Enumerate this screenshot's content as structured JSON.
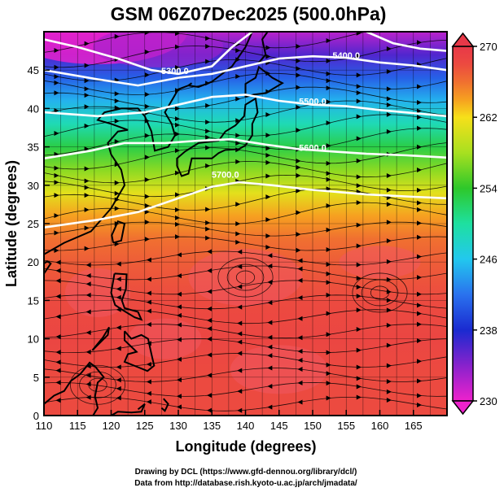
{
  "chart_data": {
    "type": "heatmap",
    "title": "GSM 06Z07Dec2025 (500.0hPa)",
    "xlabel": "Longitude (degrees)",
    "ylabel": "Latitude  (degrees)",
    "xlim": [
      110,
      170
    ],
    "ylim": [
      0,
      50
    ],
    "x_ticks": [
      110,
      115,
      120,
      125,
      130,
      135,
      140,
      145,
      150,
      155,
      160,
      165
    ],
    "y_ticks": [
      0,
      5,
      10,
      15,
      20,
      25,
      30,
      35,
      40,
      45
    ],
    "colorbar": {
      "range": [
        230,
        270
      ],
      "ticks": [
        230,
        238,
        246,
        254,
        262,
        270
      ],
      "stops": [
        {
          "value": 230,
          "color": "#ee22cc"
        },
        {
          "value": 234,
          "color": "#8822cc"
        },
        {
          "value": 238,
          "color": "#1a2ad0"
        },
        {
          "value": 242,
          "color": "#2a72ee"
        },
        {
          "value": 246,
          "color": "#22c8ee"
        },
        {
          "value": 250,
          "color": "#1ee0a0"
        },
        {
          "value": 254,
          "color": "#2ec82a"
        },
        {
          "value": 258,
          "color": "#a8e020"
        },
        {
          "value": 262,
          "color": "#f6e01a"
        },
        {
          "value": 264,
          "color": "#f6a020"
        },
        {
          "value": 266,
          "color": "#f07030"
        },
        {
          "value": 268,
          "color": "#ec4a40"
        },
        {
          "value": 270,
          "color": "#e83848"
        }
      ]
    },
    "temperature_by_latitude": [
      {
        "lat": 50,
        "value": 232
      },
      {
        "lat": 47,
        "value": 236
      },
      {
        "lat": 44,
        "value": 241
      },
      {
        "lat": 41,
        "value": 245
      },
      {
        "lat": 38,
        "value": 249
      },
      {
        "lat": 35,
        "value": 253
      },
      {
        "lat": 32,
        "value": 257
      },
      {
        "lat": 29,
        "value": 261
      },
      {
        "lat": 26,
        "value": 264
      },
      {
        "lat": 23,
        "value": 266
      },
      {
        "lat": 20,
        "value": 267
      },
      {
        "lat": 15,
        "value": 268
      },
      {
        "lat": 10,
        "value": 268.5
      },
      {
        "lat": 5,
        "value": 268
      },
      {
        "lat": 0,
        "value": 268
      }
    ],
    "height_contours": [
      {
        "label": "5300.0",
        "label_lon": 129.5,
        "label_lat": 44.5
      },
      {
        "label": "5400.0",
        "label_lon": 155,
        "label_lat": 46.5
      },
      {
        "label": "5500.0",
        "label_lon": 150,
        "label_lat": 40.5
      },
      {
        "label": "5600.0",
        "label_lon": 150,
        "label_lat": 34.5
      },
      {
        "label": "5700.0",
        "label_lon": 137,
        "label_lat": 31
      }
    ],
    "wind_vectors": "streamlines",
    "grid": true
  },
  "credits": {
    "line1": "Drawing by DCL (https://www.gfd-dennou.org/library/dcl/)",
    "line2": "Data from http://database.rish.kyoto-u.ac.jp/arch/jmadata/"
  }
}
